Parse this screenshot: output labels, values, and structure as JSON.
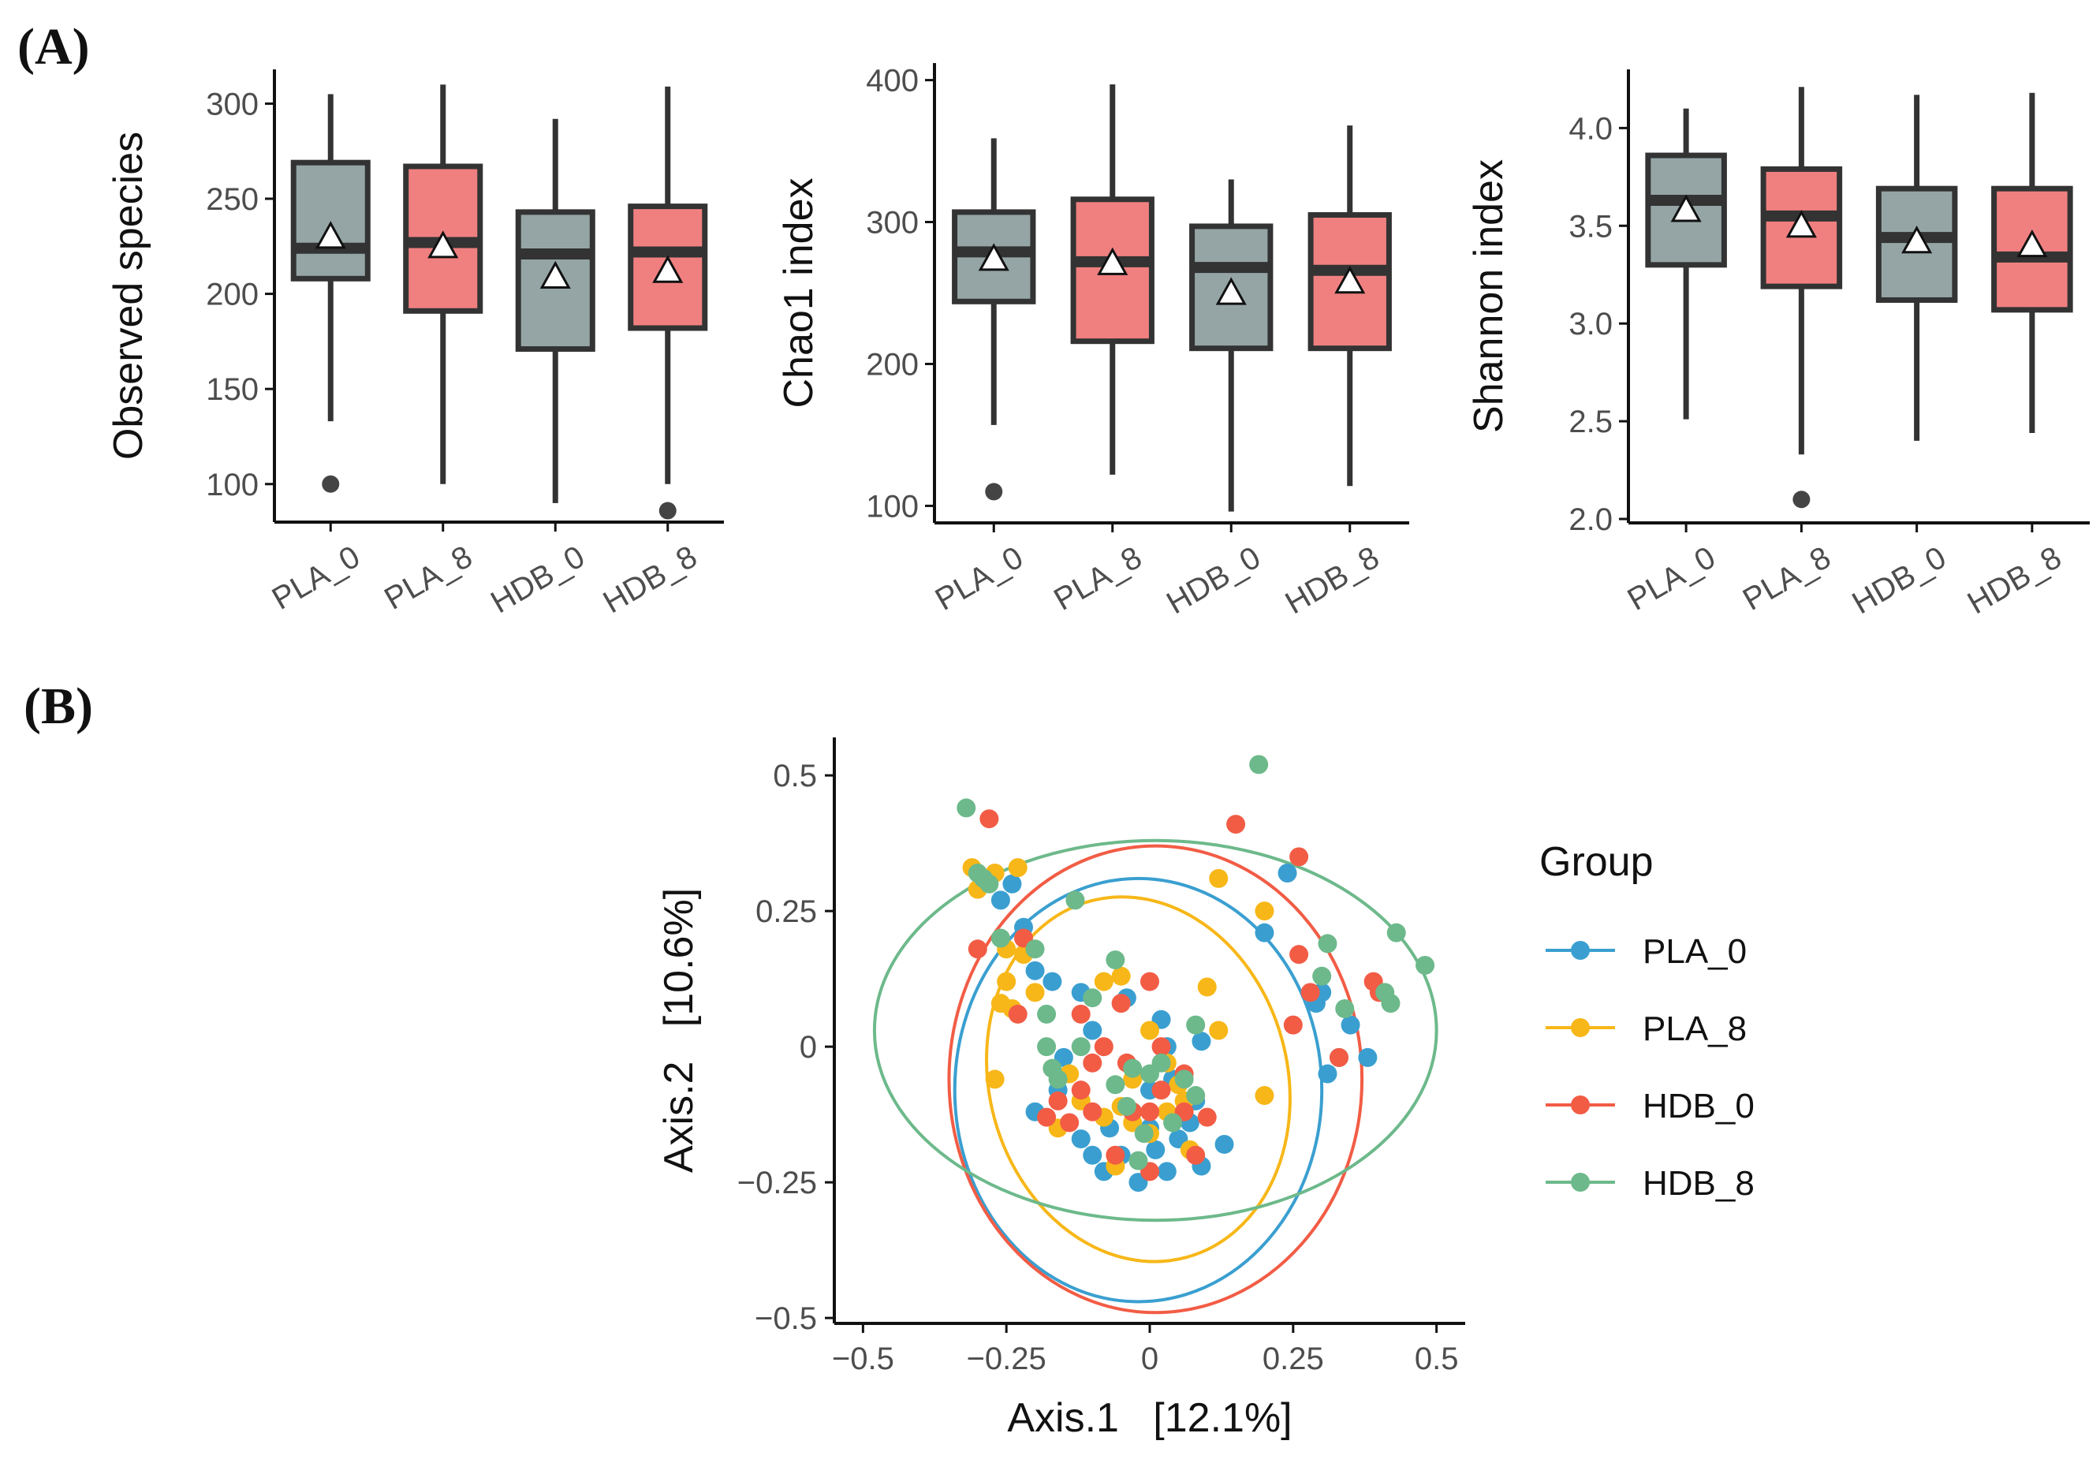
{
  "panel_labels": {
    "a": "(A)",
    "b": "(B)"
  },
  "colors": {
    "gray_box": "#95a5a6",
    "red_box": "#f08080",
    "box_stroke": "#333333",
    "axis": "#111111",
    "PLA_0": "#3a9fd0",
    "PLA_8": "#f7b718",
    "HDB_0": "#f25c45",
    "HDB_8": "#6db98b"
  },
  "chart_data": [
    {
      "type": "box",
      "ylabel": "Observed species",
      "categories": [
        "PLA_0",
        "PLA_8",
        "HDB_0",
        "HDB_8"
      ],
      "box_colors": [
        "gray",
        "red",
        "gray",
        "red"
      ],
      "ylim": [
        80,
        318
      ],
      "yticks": [
        100,
        150,
        200,
        250,
        300
      ],
      "ytick_labels": [
        "100",
        "150",
        "200",
        "250",
        "300"
      ],
      "boxes": [
        {
          "low": 133,
          "q1": 208,
          "median": 224,
          "q3": 269,
          "high": 305,
          "mean": 230,
          "outliers": [
            100
          ]
        },
        {
          "low": 100,
          "q1": 191,
          "median": 227,
          "q3": 267,
          "high": 310,
          "mean": 225,
          "outliers": []
        },
        {
          "low": 90,
          "q1": 171,
          "median": 221,
          "q3": 243,
          "high": 292,
          "mean": 209,
          "outliers": []
        },
        {
          "low": 100,
          "q1": 182,
          "median": 222,
          "q3": 246,
          "high": 309,
          "mean": 212,
          "outliers": [
            86
          ]
        }
      ]
    },
    {
      "type": "box",
      "ylabel": "Chao1 index",
      "categories": [
        "PLA_0",
        "PLA_8",
        "HDB_0",
        "HDB_8"
      ],
      "box_colors": [
        "gray",
        "red",
        "gray",
        "red"
      ],
      "ylim": [
        88,
        412
      ],
      "yticks": [
        100,
        200,
        300,
        400
      ],
      "ytick_labels": [
        "100",
        "200",
        "300",
        "400"
      ],
      "boxes": [
        {
          "low": 157,
          "q1": 244,
          "median": 279,
          "q3": 307,
          "high": 359,
          "mean": 274,
          "outliers": [
            110
          ]
        },
        {
          "low": 122,
          "q1": 216,
          "median": 272,
          "q3": 316,
          "high": 397,
          "mean": 271,
          "outliers": []
        },
        {
          "low": 96,
          "q1": 211,
          "median": 268,
          "q3": 297,
          "high": 330,
          "mean": 250,
          "outliers": []
        },
        {
          "low": 114,
          "q1": 211,
          "median": 266,
          "q3": 305,
          "high": 368,
          "mean": 258,
          "outliers": []
        }
      ]
    },
    {
      "type": "box",
      "ylabel": "Shannon index",
      "categories": [
        "PLA_0",
        "PLA_8",
        "HDB_0",
        "HDB_8"
      ],
      "box_colors": [
        "gray",
        "red",
        "gray",
        "red"
      ],
      "ylim": [
        1.98,
        4.3
      ],
      "yticks": [
        2.0,
        2.5,
        3.0,
        3.5,
        4.0
      ],
      "ytick_labels": [
        "2.0",
        "2.5",
        "3.0",
        "3.5",
        "4.0"
      ],
      "boxes": [
        {
          "low": 2.51,
          "q1": 3.3,
          "median": 3.63,
          "q3": 3.86,
          "high": 4.1,
          "mean": 3.58,
          "outliers": []
        },
        {
          "low": 2.33,
          "q1": 3.19,
          "median": 3.55,
          "q3": 3.79,
          "high": 4.21,
          "mean": 3.5,
          "outliers": [
            2.1
          ]
        },
        {
          "low": 2.4,
          "q1": 3.12,
          "median": 3.44,
          "q3": 3.69,
          "high": 4.17,
          "mean": 3.42,
          "outliers": []
        },
        {
          "low": 2.44,
          "q1": 3.07,
          "median": 3.34,
          "q3": 3.69,
          "high": 4.18,
          "mean": 3.4,
          "outliers": []
        }
      ]
    },
    {
      "type": "scatter",
      "xlabel": "Axis.1   [12.1%]",
      "ylabel": "Axis.2   [10.6%]",
      "xlim": [
        -0.55,
        0.55
      ],
      "ylim": [
        -0.51,
        0.57
      ],
      "xticks": [
        -0.5,
        -0.25,
        0,
        0.25,
        0.5
      ],
      "xtick_labels": [
        "−0.5",
        "−0.25",
        "0",
        "0.25",
        "0.5"
      ],
      "yticks": [
        -0.5,
        -0.25,
        0,
        0.25,
        0.5
      ],
      "ytick_labels": [
        "−0.5",
        "−0.25",
        "0",
        "0.25",
        "0.5"
      ],
      "legend_title": "Group",
      "legend_position": "right",
      "series": [
        {
          "name": "PLA_0",
          "ellipse": {
            "cx": -0.02,
            "cy": -0.08,
            "rx": 0.32,
            "ry": 0.39,
            "angle": 0
          },
          "points": [
            [
              -0.26,
              0.27
            ],
            [
              -0.24,
              0.3
            ],
            [
              -0.22,
              0.22
            ],
            [
              -0.2,
              0.14
            ],
            [
              -0.17,
              0.12
            ],
            [
              -0.12,
              0.1
            ],
            [
              -0.04,
              0.09
            ],
            [
              0.02,
              0.05
            ],
            [
              0.03,
              0.0
            ],
            [
              -0.1,
              0.03
            ],
            [
              -0.15,
              -0.02
            ],
            [
              -0.16,
              -0.08
            ],
            [
              -0.2,
              -0.12
            ],
            [
              -0.12,
              -0.17
            ],
            [
              -0.1,
              -0.2
            ],
            [
              -0.08,
              -0.23
            ],
            [
              -0.05,
              -0.2
            ],
            [
              -0.02,
              -0.25
            ],
            [
              0.01,
              -0.19
            ],
            [
              0.03,
              -0.23
            ],
            [
              0.05,
              -0.17
            ],
            [
              0.07,
              -0.14
            ],
            [
              0.09,
              -0.22
            ],
            [
              0.13,
              -0.18
            ],
            [
              0.08,
              -0.1
            ],
            [
              0.04,
              -0.06
            ],
            [
              0.09,
              0.01
            ],
            [
              -0.03,
              -0.12
            ],
            [
              0.0,
              -0.15
            ],
            [
              0.2,
              0.21
            ],
            [
              0.24,
              0.32
            ],
            [
              0.3,
              0.1
            ],
            [
              0.35,
              0.04
            ],
            [
              0.38,
              -0.02
            ],
            [
              0.33,
              -0.02
            ],
            [
              0.29,
              0.08
            ],
            [
              0.31,
              -0.05
            ],
            [
              -0.07,
              -0.15
            ],
            [
              0.0,
              -0.08
            ]
          ]
        },
        {
          "name": "PLA_8",
          "ellipse": {
            "cx": -0.02,
            "cy": -0.06,
            "rx": 0.26,
            "ry": 0.34,
            "angle": -15
          },
          "points": [
            [
              -0.31,
              0.33
            ],
            [
              -0.27,
              0.32
            ],
            [
              -0.23,
              0.33
            ],
            [
              -0.3,
              0.29
            ],
            [
              -0.25,
              0.18
            ],
            [
              -0.22,
              0.17
            ],
            [
              -0.25,
              0.12
            ],
            [
              -0.26,
              0.08
            ],
            [
              -0.24,
              0.07
            ],
            [
              -0.2,
              0.1
            ],
            [
              -0.08,
              0.12
            ],
            [
              -0.05,
              0.13
            ],
            [
              -0.27,
              -0.06
            ],
            [
              -0.12,
              -0.1
            ],
            [
              -0.08,
              -0.13
            ],
            [
              -0.05,
              -0.11
            ],
            [
              -0.03,
              -0.14
            ],
            [
              0.0,
              -0.16
            ],
            [
              0.03,
              -0.12
            ],
            [
              0.06,
              -0.1
            ],
            [
              -0.03,
              -0.06
            ],
            [
              0.0,
              0.03
            ],
            [
              0.03,
              -0.03
            ],
            [
              0.1,
              0.11
            ],
            [
              0.12,
              0.03
            ],
            [
              0.2,
              -0.09
            ],
            [
              -0.16,
              -0.15
            ],
            [
              -0.06,
              -0.22
            ],
            [
              0.07,
              -0.19
            ],
            [
              0.12,
              0.31
            ],
            [
              0.2,
              0.25
            ],
            [
              -0.14,
              -0.05
            ],
            [
              0.05,
              -0.07
            ]
          ]
        },
        {
          "name": "HDB_0",
          "ellipse": {
            "cx": 0.01,
            "cy": -0.06,
            "rx": 0.36,
            "ry": 0.43,
            "angle": 0
          },
          "points": [
            [
              -0.28,
              0.42
            ],
            [
              -0.3,
              0.18
            ],
            [
              -0.22,
              0.2
            ],
            [
              -0.23,
              0.06
            ],
            [
              -0.12,
              0.06
            ],
            [
              -0.08,
              0.0
            ],
            [
              -0.1,
              -0.03
            ],
            [
              -0.05,
              0.08
            ],
            [
              0.0,
              0.12
            ],
            [
              0.02,
              0.0
            ],
            [
              0.06,
              -0.05
            ],
            [
              -0.12,
              -0.08
            ],
            [
              -0.16,
              -0.1
            ],
            [
              -0.18,
              -0.13
            ],
            [
              -0.1,
              -0.12
            ],
            [
              -0.03,
              -0.12
            ],
            [
              0.02,
              -0.08
            ],
            [
              0.0,
              -0.12
            ],
            [
              0.06,
              -0.12
            ],
            [
              0.1,
              -0.13
            ],
            [
              0.08,
              -0.2
            ],
            [
              0.0,
              -0.23
            ],
            [
              -0.06,
              -0.2
            ],
            [
              0.15,
              0.41
            ],
            [
              0.26,
              0.35
            ],
            [
              0.26,
              0.17
            ],
            [
              0.28,
              0.1
            ],
            [
              0.25,
              0.04
            ],
            [
              0.33,
              -0.02
            ],
            [
              0.39,
              0.12
            ],
            [
              0.4,
              0.1
            ],
            [
              -0.14,
              -0.14
            ],
            [
              -0.04,
              -0.03
            ]
          ]
        },
        {
          "name": "HDB_8",
          "ellipse": {
            "cx": 0.01,
            "cy": 0.03,
            "rx": 0.49,
            "ry": 0.35,
            "angle": 0
          },
          "points": [
            [
              -0.32,
              0.44
            ],
            [
              -0.3,
              0.32
            ],
            [
              -0.29,
              0.31
            ],
            [
              -0.28,
              0.3
            ],
            [
              -0.26,
              0.2
            ],
            [
              -0.2,
              0.18
            ],
            [
              -0.13,
              0.27
            ],
            [
              -0.06,
              0.16
            ],
            [
              -0.1,
              0.09
            ],
            [
              -0.18,
              0.06
            ],
            [
              -0.18,
              0.0
            ],
            [
              -0.12,
              0.0
            ],
            [
              -0.17,
              -0.04
            ],
            [
              -0.16,
              -0.06
            ],
            [
              -0.03,
              -0.04
            ],
            [
              0.0,
              -0.05
            ],
            [
              0.02,
              -0.03
            ],
            [
              0.06,
              -0.06
            ],
            [
              0.08,
              -0.09
            ],
            [
              -0.06,
              -0.07
            ],
            [
              -0.01,
              -0.16
            ],
            [
              -0.04,
              -0.11
            ],
            [
              -0.02,
              -0.21
            ],
            [
              0.04,
              -0.14
            ],
            [
              0.08,
              0.04
            ],
            [
              0.19,
              0.52
            ],
            [
              0.31,
              0.19
            ],
            [
              0.3,
              0.13
            ],
            [
              0.34,
              0.07
            ],
            [
              0.43,
              0.21
            ],
            [
              0.48,
              0.15
            ],
            [
              0.41,
              0.1
            ],
            [
              0.42,
              0.08
            ]
          ]
        }
      ]
    }
  ]
}
